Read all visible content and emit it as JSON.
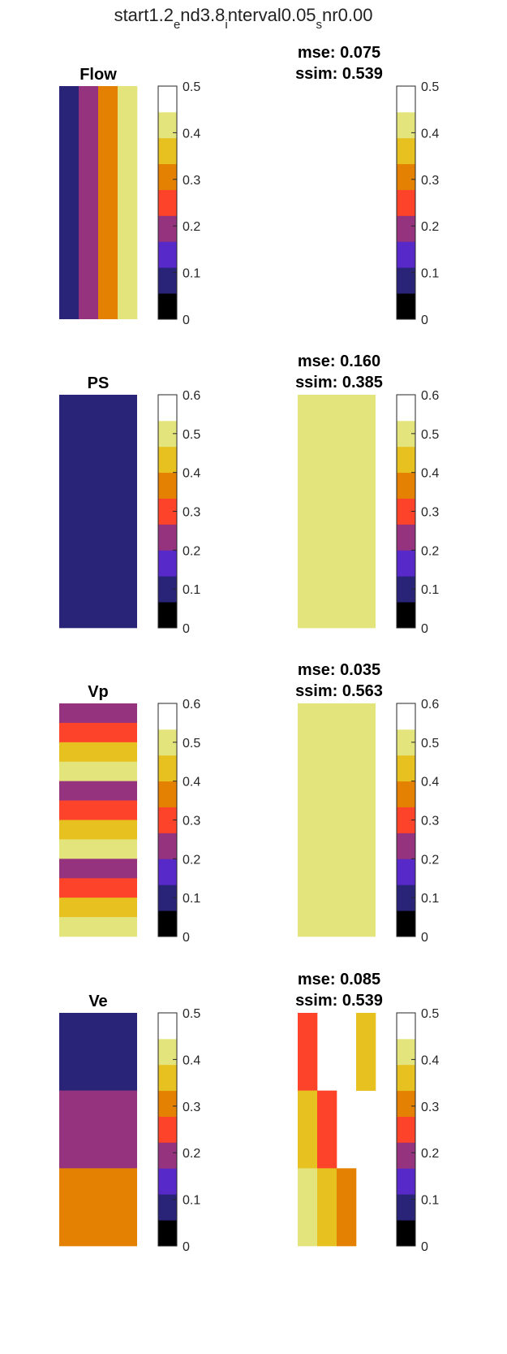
{
  "figure": {
    "title_parts": [
      "start1.2",
      "e",
      "nd3.8",
      "i",
      "nterval0.05",
      "s",
      "nr0.00"
    ]
  },
  "colors": {
    "palette": [
      "#000000",
      "#2a2479",
      "#5729c8",
      "#96337e",
      "#fd4329",
      "#e58102",
      "#e6c11f",
      "#e4e47c",
      "#ffffff"
    ]
  },
  "chart_data": [
    {
      "type": "heatmap",
      "title": "Flow",
      "panel": "left",
      "orientation": "columns",
      "cells": [
        1,
        3,
        5,
        7
      ],
      "colorbar": {
        "range": [
          0,
          0.5
        ],
        "ticks": [
          "0",
          "0.1",
          "0.2",
          "0.3",
          "0.4",
          "0.5"
        ]
      }
    },
    {
      "type": "heatmap",
      "title": "",
      "panel": "right",
      "orientation": "rows",
      "metrics": {
        "mse": "mse: 0.075",
        "ssim": "ssim: 0.539"
      },
      "cells": [],
      "colorbar": {
        "range": [
          0,
          0.5
        ],
        "ticks": [
          "0",
          "0.1",
          "0.2",
          "0.3",
          "0.4",
          "0.5"
        ]
      }
    },
    {
      "type": "heatmap",
      "title": "PS",
      "panel": "left",
      "orientation": "rows",
      "cells": [
        1
      ],
      "colorbar": {
        "range": [
          0,
          0.6
        ],
        "ticks": [
          "0",
          "0.1",
          "0.2",
          "0.3",
          "0.4",
          "0.5",
          "0.6"
        ]
      }
    },
    {
      "type": "heatmap",
      "title": "",
      "panel": "right",
      "orientation": "rows",
      "metrics": {
        "mse": "mse: 0.160",
        "ssim": "ssim: 0.385"
      },
      "cells": [
        7
      ],
      "colorbar": {
        "range": [
          0,
          0.6
        ],
        "ticks": [
          "0",
          "0.1",
          "0.2",
          "0.3",
          "0.4",
          "0.5",
          "0.6"
        ]
      }
    },
    {
      "type": "heatmap",
      "title": "Vp",
      "panel": "left",
      "orientation": "rows",
      "cells": [
        3,
        4,
        6,
        7,
        3,
        4,
        6,
        7,
        3,
        4,
        6,
        7
      ],
      "colorbar": {
        "range": [
          0,
          0.6
        ],
        "ticks": [
          "0",
          "0.1",
          "0.2",
          "0.3",
          "0.4",
          "0.5",
          "0.6"
        ]
      }
    },
    {
      "type": "heatmap",
      "title": "",
      "panel": "right",
      "orientation": "rows",
      "metrics": {
        "mse": "mse: 0.035",
        "ssim": "ssim: 0.563"
      },
      "cells": [
        7
      ],
      "colorbar": {
        "range": [
          0,
          0.6
        ],
        "ticks": [
          "0",
          "0.1",
          "0.2",
          "0.3",
          "0.4",
          "0.5",
          "0.6"
        ]
      }
    },
    {
      "type": "heatmap",
      "title": "Ve",
      "panel": "left",
      "orientation": "rows",
      "cells": [
        1,
        3,
        5
      ],
      "colorbar": {
        "range": [
          0,
          0.5
        ],
        "ticks": [
          "0",
          "0.1",
          "0.2",
          "0.3",
          "0.4",
          "0.5"
        ]
      }
    },
    {
      "type": "heatmap",
      "title": "",
      "panel": "right",
      "orientation": "rows",
      "metrics": {
        "mse": "mse: 0.085",
        "ssim": "ssim: 0.539"
      },
      "cells": [
        4,
        6,
        7,
        8,
        4,
        6,
        8,
        8,
        5,
        6,
        8,
        8
      ],
      "cell_columns": 4,
      "colorbar": {
        "range": [
          0,
          0.5
        ],
        "ticks": [
          "0",
          "0.1",
          "0.2",
          "0.3",
          "0.4",
          "0.5"
        ]
      }
    }
  ]
}
